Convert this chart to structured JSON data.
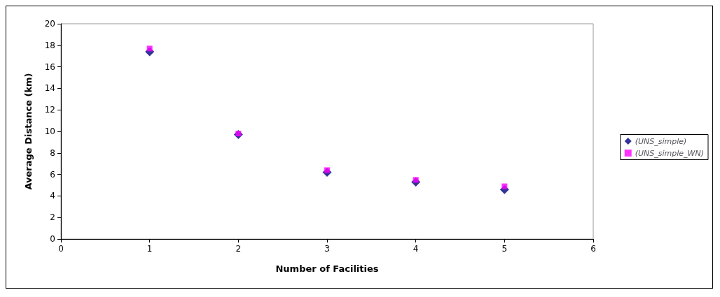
{
  "chart_data": {
    "type": "scatter",
    "xlabel": "Number of Facilities",
    "ylabel": "Average Distance (km)",
    "x": [
      1,
      2,
      3,
      4,
      5
    ],
    "series": [
      {
        "name": "(UNS_simple)",
        "color": "#000080",
        "marker": "diamond",
        "values": [
          17.4,
          9.7,
          6.2,
          5.3,
          4.6
        ]
      },
      {
        "name": "(UNS_simple_WN)",
        "color": "#ff00ff",
        "marker": "square",
        "values": [
          17.7,
          9.8,
          6.4,
          5.5,
          4.9
        ]
      }
    ],
    "xlim": [
      0,
      6
    ],
    "xticks": [
      0,
      1,
      2,
      3,
      4,
      5,
      6
    ],
    "ylim": [
      0,
      20
    ],
    "yticks": [
      0,
      2,
      4,
      6,
      8,
      10,
      12,
      14,
      16,
      18,
      20
    ],
    "grid": false,
    "legend": "right"
  }
}
